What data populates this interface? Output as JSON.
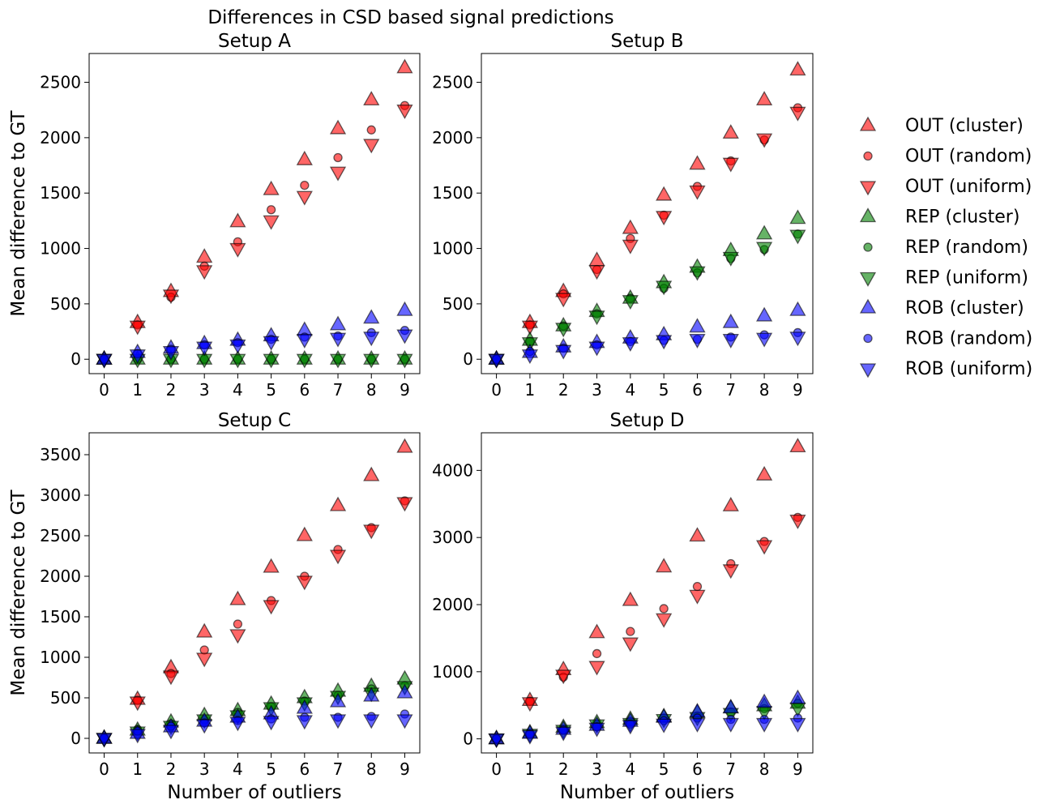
{
  "figure": {
    "suptitle": "Differences in CSD based signal predictions"
  },
  "legend": {
    "placement": "right",
    "entries": [
      {
        "label": "OUT (cluster)",
        "color": "#ff0000",
        "marker": "triangle-up"
      },
      {
        "label": "OUT (random)",
        "color": "#ff0000",
        "marker": "circle"
      },
      {
        "label": "OUT (uniform)",
        "color": "#ff0000",
        "marker": "triangle-down"
      },
      {
        "label": "REP (cluster)",
        "color": "#008000",
        "marker": "triangle-up"
      },
      {
        "label": "REP (random)",
        "color": "#008000",
        "marker": "circle"
      },
      {
        "label": "REP (uniform)",
        "color": "#008000",
        "marker": "triangle-down"
      },
      {
        "label": "ROB (cluster)",
        "color": "#0000ff",
        "marker": "triangle-up"
      },
      {
        "label": "ROB (random)",
        "color": "#0000ff",
        "marker": "circle"
      },
      {
        "label": "ROB (uniform)",
        "color": "#0000ff",
        "marker": "triangle-down"
      }
    ]
  },
  "chart_data": [
    {
      "type": "scatter",
      "title": "Setup A",
      "xlabel": "",
      "ylabel": "Mean difference to GT",
      "x": [
        0,
        1,
        2,
        3,
        4,
        5,
        6,
        7,
        8,
        9
      ],
      "xlim": [
        -0.45,
        9.45
      ],
      "ylim": [
        -130,
        2760
      ],
      "yticks": [
        0,
        500,
        1000,
        1500,
        2000,
        2500
      ],
      "series": [
        {
          "name": "OUT (cluster)",
          "values": [
            0,
            330,
            610,
            920,
            1240,
            1530,
            1800,
            2080,
            2340,
            2630
          ]
        },
        {
          "name": "OUT (random)",
          "values": [
            0,
            310,
            560,
            840,
            1060,
            1350,
            1570,
            1820,
            2070,
            2290
          ]
        },
        {
          "name": "OUT (uniform)",
          "values": [
            0,
            300,
            580,
            800,
            1000,
            1250,
            1470,
            1690,
            1940,
            2250
          ]
        },
        {
          "name": "REP (cluster)",
          "values": [
            0,
            0,
            0,
            0,
            0,
            0,
            0,
            0,
            0,
            0
          ]
        },
        {
          "name": "REP (random)",
          "values": [
            0,
            0,
            0,
            0,
            0,
            0,
            0,
            0,
            0,
            0
          ]
        },
        {
          "name": "REP (uniform)",
          "values": [
            0,
            0,
            0,
            0,
            0,
            0,
            0,
            0,
            0,
            0
          ]
        },
        {
          "name": "ROB (cluster)",
          "values": [
            0,
            60,
            100,
            140,
            170,
            210,
            260,
            310,
            370,
            440
          ]
        },
        {
          "name": "ROB (random)",
          "values": [
            0,
            50,
            90,
            130,
            150,
            180,
            200,
            210,
            240,
            260
          ]
        },
        {
          "name": "ROB (uniform)",
          "values": [
            0,
            40,
            70,
            110,
            130,
            160,
            180,
            190,
            200,
            220
          ]
        }
      ]
    },
    {
      "type": "scatter",
      "title": "Setup B",
      "xlabel": "",
      "ylabel": "",
      "x": [
        0,
        1,
        2,
        3,
        4,
        5,
        6,
        7,
        8,
        9
      ],
      "xlim": [
        -0.45,
        9.45
      ],
      "ylim": [
        -130,
        2760
      ],
      "yticks": [
        0,
        500,
        1000,
        1500,
        2000,
        2500
      ],
      "series": [
        {
          "name": "OUT (cluster)",
          "values": [
            0,
            330,
            610,
            890,
            1180,
            1480,
            1760,
            2040,
            2340,
            2610
          ]
        },
        {
          "name": "OUT (random)",
          "values": [
            0,
            310,
            590,
            810,
            1090,
            1300,
            1560,
            1790,
            1980,
            2270
          ]
        },
        {
          "name": "OUT (uniform)",
          "values": [
            0,
            300,
            550,
            800,
            1030,
            1290,
            1520,
            1770,
            1990,
            2230
          ]
        },
        {
          "name": "REP (cluster)",
          "values": [
            0,
            170,
            300,
            430,
            550,
            690,
            830,
            980,
            1130,
            1270
          ]
        },
        {
          "name": "REP (random)",
          "values": [
            0,
            160,
            300,
            410,
            550,
            640,
            780,
            910,
            990,
            1130
          ]
        },
        {
          "name": "REP (uniform)",
          "values": [
            0,
            150,
            280,
            390,
            530,
            660,
            790,
            920,
            1010,
            1120
          ]
        },
        {
          "name": "ROB (cluster)",
          "values": [
            0,
            60,
            110,
            150,
            190,
            220,
            290,
            330,
            390,
            440
          ]
        },
        {
          "name": "ROB (random)",
          "values": [
            0,
            70,
            100,
            130,
            160,
            170,
            180,
            200,
            220,
            240
          ]
        },
        {
          "name": "ROB (uniform)",
          "values": [
            0,
            40,
            80,
            110,
            150,
            170,
            180,
            180,
            190,
            200
          ]
        }
      ]
    },
    {
      "type": "scatter",
      "title": "Setup C",
      "xlabel": "Number of outliers",
      "ylabel": "Mean difference to GT",
      "x": [
        0,
        1,
        2,
        3,
        4,
        5,
        6,
        7,
        8,
        9
      ],
      "xlim": [
        -0.45,
        9.45
      ],
      "ylim": [
        -180,
        3770
      ],
      "yticks": [
        0,
        500,
        1000,
        1500,
        2000,
        2500,
        3000,
        3500
      ],
      "series": [
        {
          "name": "OUT (cluster)",
          "values": [
            0,
            480,
            870,
            1310,
            1710,
            2110,
            2500,
            2870,
            3240,
            3590
          ]
        },
        {
          "name": "OUT (random)",
          "values": [
            0,
            470,
            800,
            1090,
            1410,
            1700,
            2000,
            2330,
            2600,
            2930
          ]
        },
        {
          "name": "OUT (uniform)",
          "values": [
            0,
            450,
            770,
            990,
            1280,
            1640,
            1940,
            2260,
            2570,
            2910
          ]
        },
        {
          "name": "REP (cluster)",
          "values": [
            0,
            100,
            200,
            280,
            340,
            420,
            500,
            580,
            640,
            730
          ]
        },
        {
          "name": "REP (random)",
          "values": [
            0,
            110,
            180,
            230,
            320,
            390,
            460,
            530,
            610,
            650
          ]
        },
        {
          "name": "REP (uniform)",
          "values": [
            0,
            80,
            150,
            230,
            280,
            380,
            440,
            520,
            560,
            640
          ]
        },
        {
          "name": "ROB (cluster)",
          "values": [
            0,
            60,
            140,
            210,
            260,
            300,
            370,
            450,
            520,
            560
          ]
        },
        {
          "name": "ROB (random)",
          "values": [
            0,
            90,
            150,
            190,
            220,
            240,
            260,
            260,
            270,
            300
          ]
        },
        {
          "name": "ROB (uniform)",
          "values": [
            0,
            50,
            100,
            170,
            200,
            210,
            220,
            230,
            230,
            230
          ]
        }
      ]
    },
    {
      "type": "scatter",
      "title": "Setup D",
      "xlabel": "Number of outliers",
      "ylabel": "",
      "x": [
        0,
        1,
        2,
        3,
        4,
        5,
        6,
        7,
        8,
        9
      ],
      "xlim": [
        -0.45,
        9.45
      ],
      "ylim": [
        -210,
        4560
      ],
      "yticks": [
        0,
        1000,
        2000,
        3000,
        4000
      ],
      "series": [
        {
          "name": "OUT (cluster)",
          "values": [
            0,
            570,
            1030,
            1580,
            2060,
            2560,
            3020,
            3470,
            3930,
            4350
          ]
        },
        {
          "name": "OUT (random)",
          "values": [
            0,
            560,
            920,
            1270,
            1600,
            1940,
            2270,
            2610,
            2940,
            3300
          ]
        },
        {
          "name": "OUT (uniform)",
          "values": [
            0,
            540,
            950,
            1080,
            1430,
            1790,
            2140,
            2520,
            2880,
            3260
          ]
        },
        {
          "name": "REP (cluster)",
          "values": [
            0,
            90,
            170,
            240,
            290,
            330,
            390,
            460,
            490,
            530
          ]
        },
        {
          "name": "REP (random)",
          "values": [
            0,
            80,
            140,
            210,
            260,
            310,
            340,
            400,
            450,
            530
          ]
        },
        {
          "name": "REP (uniform)",
          "values": [
            0,
            70,
            130,
            210,
            230,
            290,
            320,
            380,
            410,
            460
          ]
        },
        {
          "name": "ROB (cluster)",
          "values": [
            0,
            80,
            140,
            200,
            260,
            320,
            400,
            460,
            540,
            600
          ]
        },
        {
          "name": "ROB (random)",
          "values": [
            0,
            70,
            130,
            180,
            220,
            270,
            310,
            290,
            290,
            310
          ]
        },
        {
          "name": "ROB (uniform)",
          "values": [
            0,
            50,
            100,
            160,
            200,
            220,
            230,
            230,
            230,
            230
          ]
        }
      ]
    }
  ]
}
